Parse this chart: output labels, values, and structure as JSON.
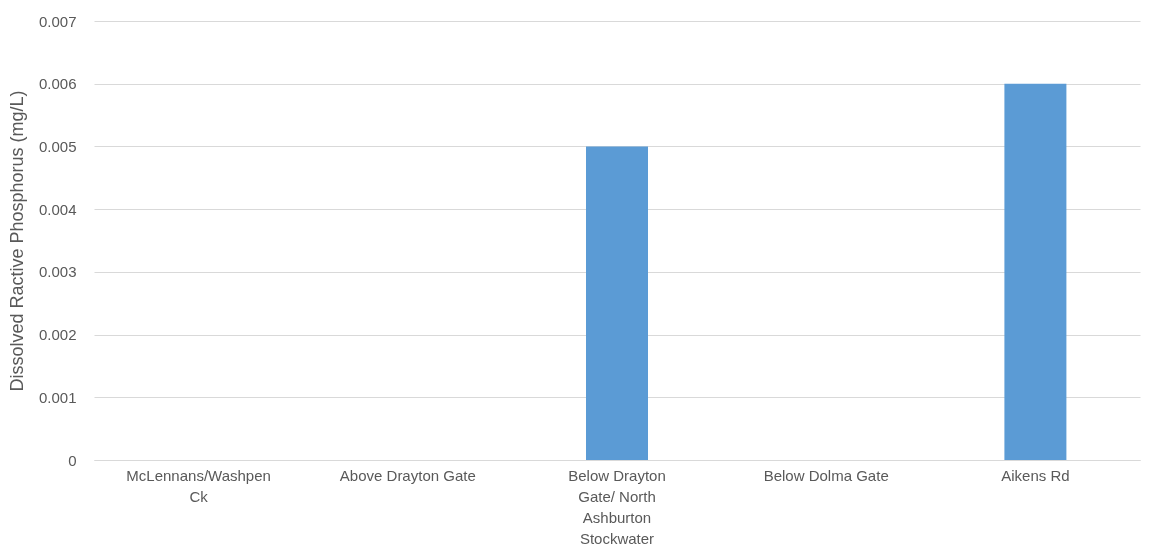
{
  "chart_data": {
    "type": "bar",
    "ylabel": "Dissolved Ractive Phosphorus (mg/L)",
    "categories": [
      "McLennans/Washpen Ck",
      "Above Drayton Gate",
      "Below Drayton Gate/ North Ashburton Stockwater",
      "Below Dolma Gate",
      "Aikens Rd"
    ],
    "values": [
      0,
      0,
      0.005,
      0,
      0.006
    ],
    "color": "#5b9bd5",
    "ylim": [
      0,
      0.007
    ],
    "yticks": [
      0,
      0.001,
      0.002,
      0.003,
      0.004,
      0.005,
      0.006,
      0.007
    ],
    "grid": "y"
  }
}
